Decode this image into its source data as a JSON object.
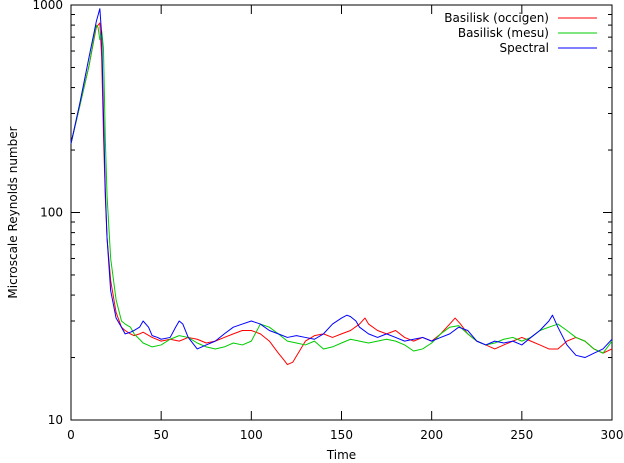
{
  "chart_data": {
    "type": "line",
    "title": "",
    "xlabel": "Time",
    "ylabel": "Microscale Reynolds number",
    "xlim": [
      0,
      300
    ],
    "ylim": [
      10,
      1000
    ],
    "yscale": "log",
    "grid": false,
    "legend_position": "top-right",
    "x_ticks": [
      0,
      50,
      100,
      150,
      200,
      250,
      300
    ],
    "x_tick_labels": [
      "0",
      "50",
      "100",
      "150",
      "200",
      "250",
      "300"
    ],
    "y_ticks": [
      10,
      100,
      1000
    ],
    "y_tick_labels": [
      "10",
      "100",
      "1000"
    ],
    "series": [
      {
        "name": "Basilisk (occigen)",
        "color": "#ff0000",
        "x": [
          0,
          5,
          10,
          14,
          16,
          17,
          18,
          19,
          20,
          22,
          25,
          28,
          30,
          33,
          35,
          38,
          40,
          45,
          50,
          55,
          60,
          65,
          70,
          75,
          80,
          85,
          90,
          95,
          100,
          105,
          110,
          115,
          118,
          120,
          123,
          126,
          130,
          135,
          140,
          145,
          150,
          155,
          160,
          163,
          165,
          170,
          175,
          180,
          185,
          190,
          195,
          200,
          205,
          210,
          213,
          216,
          220,
          225,
          230,
          235,
          240,
          245,
          250,
          255,
          260,
          265,
          270,
          275,
          280,
          285,
          290,
          295,
          300
        ],
        "values": [
          215,
          330,
          510,
          780,
          820,
          560,
          240,
          120,
          75,
          47,
          33,
          28,
          27,
          26,
          25.5,
          26,
          26.5,
          25,
          24,
          24.5,
          24,
          25,
          24.5,
          23.5,
          24,
          25,
          26,
          27,
          27,
          26,
          24,
          21,
          19.5,
          18.5,
          19,
          21,
          24,
          25.5,
          26,
          25,
          26,
          27,
          29,
          31,
          29,
          27,
          26,
          27,
          25,
          24,
          25,
          24,
          26,
          29,
          31,
          29,
          26,
          24,
          23,
          22,
          23,
          24,
          25,
          24,
          23,
          22,
          22,
          24,
          25,
          24,
          22,
          21,
          22
        ]
      },
      {
        "name": "Basilisk (mesu)",
        "color": "#00cc00",
        "x": [
          0,
          5,
          10,
          14,
          15,
          16,
          17,
          18,
          19,
          20,
          22,
          25,
          28,
          30,
          33,
          35,
          38,
          40,
          45,
          50,
          55,
          60,
          65,
          70,
          75,
          80,
          85,
          90,
          95,
          100,
          105,
          110,
          115,
          120,
          125,
          130,
          135,
          140,
          145,
          150,
          155,
          160,
          165,
          170,
          175,
          180,
          185,
          190,
          195,
          200,
          205,
          210,
          215,
          220,
          225,
          230,
          235,
          240,
          245,
          250,
          255,
          260,
          265,
          270,
          275,
          280,
          285,
          290,
          295,
          300
        ],
        "values": [
          215,
          330,
          510,
          800,
          780,
          680,
          750,
          620,
          230,
          120,
          60,
          38,
          30,
          29,
          28,
          26,
          24.5,
          23.5,
          22.5,
          23,
          24.5,
          25.5,
          25,
          23.5,
          22.5,
          22,
          22.5,
          23.5,
          23,
          24,
          29,
          28,
          26,
          24,
          23.5,
          23,
          24,
          22,
          22.5,
          23.5,
          24.5,
          24,
          23.5,
          24,
          24.5,
          24,
          23,
          21.5,
          22,
          23.5,
          26,
          28,
          28.5,
          26,
          24,
          23,
          23.5,
          24.5,
          25,
          24,
          25,
          27,
          28,
          29,
          27,
          25,
          24,
          22,
          21,
          24
        ]
      },
      {
        "name": "Spectral",
        "color": "#0000ff",
        "x": [
          0,
          5,
          10,
          14,
          16,
          17,
          18,
          19,
          20,
          22,
          25,
          28,
          30,
          33,
          35,
          38,
          40,
          43,
          45,
          48,
          50,
          55,
          58,
          60,
          62,
          65,
          70,
          75,
          80,
          85,
          90,
          95,
          100,
          105,
          110,
          115,
          120,
          125,
          130,
          135,
          140,
          145,
          150,
          153,
          155,
          158,
          160,
          165,
          170,
          175,
          180,
          185,
          190,
          195,
          200,
          205,
          210,
          215,
          220,
          225,
          230,
          235,
          240,
          245,
          250,
          255,
          260,
          265,
          267,
          270,
          275,
          280,
          285,
          290,
          295,
          300
        ],
        "values": [
          215,
          340,
          560,
          830,
          960,
          720,
          300,
          130,
          75,
          42,
          31,
          28,
          26,
          26.5,
          27,
          28,
          30,
          28,
          25.5,
          25,
          24.5,
          25,
          28,
          30,
          29,
          25,
          22,
          23,
          24,
          26,
          28,
          29,
          30,
          29,
          27,
          26,
          25,
          25.5,
          25,
          24.5,
          26,
          29,
          31,
          32,
          31.5,
          30,
          28,
          26,
          25,
          26,
          25,
          24,
          24.5,
          25,
          24,
          25,
          26,
          28,
          27,
          24,
          23,
          24,
          23.5,
          24,
          23,
          25,
          27,
          30,
          32,
          28,
          23,
          20.5,
          20,
          21,
          22,
          24.5
        ]
      }
    ]
  }
}
